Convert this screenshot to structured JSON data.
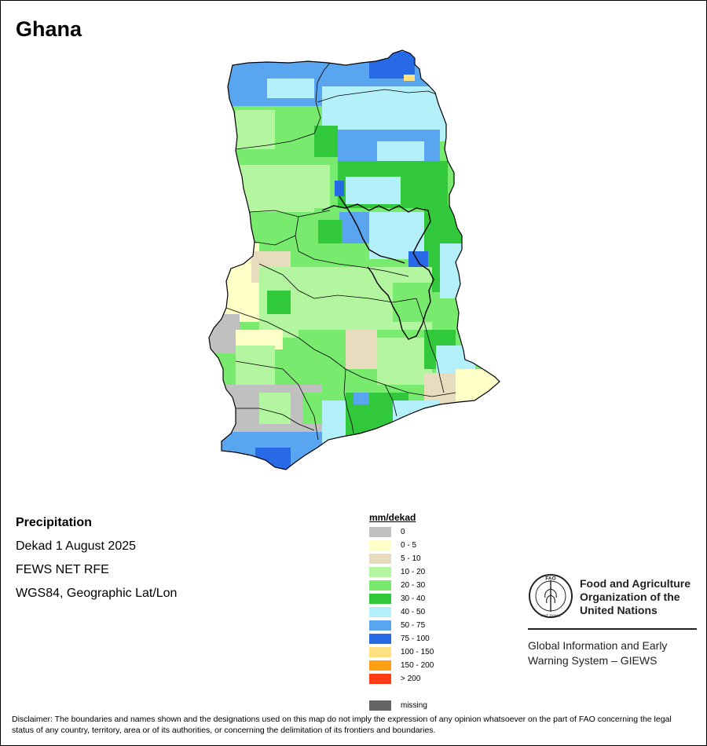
{
  "map": {
    "title": "Ghana",
    "variable": "Precipitation",
    "period": "Dekad 1 August 2025",
    "source": "FEWS NET RFE",
    "projection": "WGS84, Geographic Lat/Lon"
  },
  "legend": {
    "title": "mm/dekad",
    "classes": [
      {
        "label": "0",
        "color": "#c0c0c0"
      },
      {
        "label": "0 - 5",
        "color": "#ffffc8"
      },
      {
        "label": "5 - 10",
        "color": "#e8dcbe"
      },
      {
        "label": "10 - 20",
        "color": "#b4f5a0"
      },
      {
        "label": "20 - 30",
        "color": "#78eb6e"
      },
      {
        "label": "30 - 40",
        "color": "#32c83c"
      },
      {
        "label": "40 - 50",
        "color": "#b4f0fa"
      },
      {
        "label": "50 - 75",
        "color": "#5aa5f0"
      },
      {
        "label": "75 - 100",
        "color": "#2869e6"
      },
      {
        "label": "100 - 150",
        "color": "#ffe182"
      },
      {
        "label": "150 - 200",
        "color": "#ffa014"
      },
      {
        "label": "> 200",
        "color": "#ff3c14"
      }
    ],
    "missing": {
      "label": "missing",
      "color": "#646464"
    }
  },
  "organization": {
    "logo_letters": "FAO",
    "logo_motto": "FIAT PANIS",
    "name": "Food and Agriculture Organization of the United Nations",
    "system": "Global Information and Early Warning System – GIEWS"
  },
  "disclaimer": "Disclaimer: The boundaries and names shown and the designations used on this map do not imply the expression of any opinion whatsoever on the part of FAO concerning the legal status of any country, territory, area or of its authorities, or concerning the delimitation of its frontiers and boundaries."
}
